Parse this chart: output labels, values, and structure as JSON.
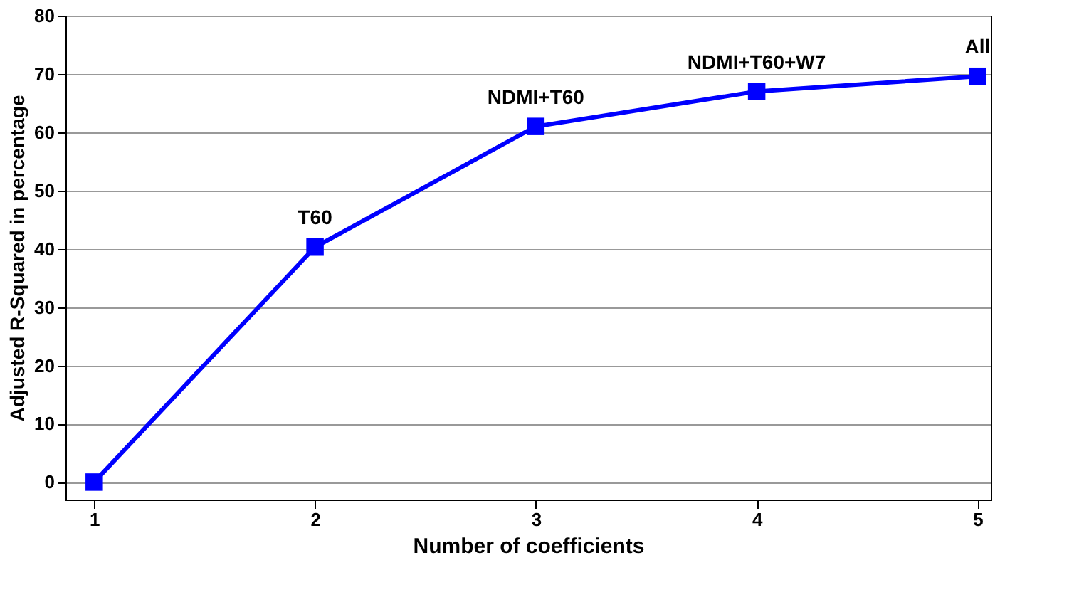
{
  "chart_data": {
    "type": "line",
    "xlabel": "Number of coefficients",
    "ylabel": "Adjusted R-Squared in percentage",
    "x": [
      1,
      2,
      3,
      4,
      5
    ],
    "series": [
      {
        "color": "#0000ff",
        "values": [
          0,
          40.3,
          61,
          67,
          69.6
        ]
      }
    ],
    "xlim": [
      0.87,
      5.06
    ],
    "xticks": [
      1,
      2,
      3,
      4,
      5
    ],
    "ylim": [
      -3,
      80
    ],
    "yticks": [
      0,
      10,
      20,
      30,
      40,
      50,
      60,
      70,
      80
    ],
    "grid": "y",
    "marker": "square",
    "line_style": "solid",
    "annotations": [
      {
        "text": "T60",
        "x": 2,
        "y": 40.3
      },
      {
        "text": "NDMI+T60",
        "x": 3,
        "y": 61
      },
      {
        "text": "NDMI+T60+W7",
        "x": 4,
        "y": 67
      },
      {
        "text": "All",
        "x": 5,
        "y": 69.6
      }
    ]
  }
}
